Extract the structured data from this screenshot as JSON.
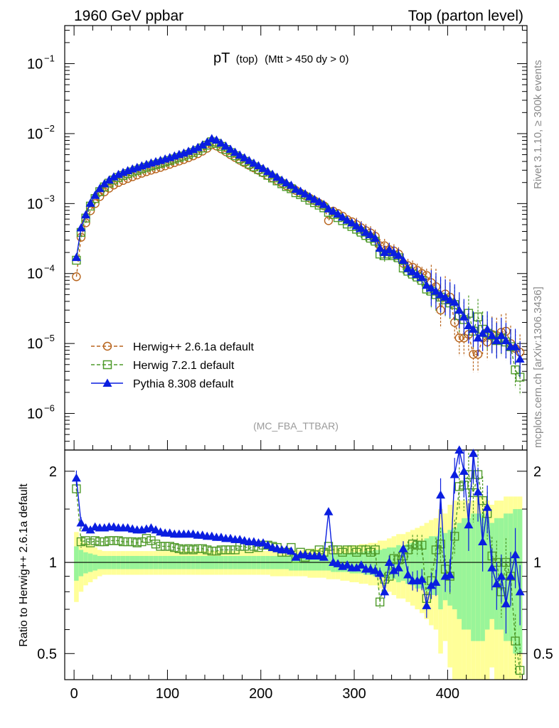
{
  "header": {
    "left": "1960 GeV ppbar",
    "right": "Top (parton level)"
  },
  "side": {
    "rivet": "Rivet 3.1.10, ≥ 300k events",
    "mcplots": "mcplots.cern.ch [arXiv:1306.3436]"
  },
  "plot_title": {
    "main": "pT",
    "sub1": "(top)",
    "sub2": "(Mtt > 450 dy > 0)"
  },
  "analysis_tag": "(MC_FBA_TTBAR)",
  "legend": [
    {
      "label": "Herwig++ 2.6.1a default",
      "color": "#b8651e",
      "marker": "circle",
      "dash": true
    },
    {
      "label": "Herwig 7.2.1 default",
      "color": "#4f9a2a",
      "marker": "square",
      "dash": true
    },
    {
      "label": "Pythia 8.308 default",
      "color": "#0a1ee0",
      "marker": "triangle",
      "dash": false
    }
  ],
  "chart_data": [
    {
      "type": "line",
      "title": "pT (top) (Mtt > 450 dy > 0)",
      "xlabel": "",
      "ylabel": "",
      "yscale": "log",
      "xlim": [
        -10,
        485
      ],
      "ylim": [
        3e-07,
        0.35
      ],
      "yticks": [
        {
          "value": 1e-06,
          "mant": "10",
          "exp": "−6"
        },
        {
          "value": 1e-05,
          "mant": "10",
          "exp": "−5"
        },
        {
          "value": 0.0001,
          "mant": "10",
          "exp": "−4"
        },
        {
          "value": 0.001,
          "mant": "10",
          "exp": "−3"
        },
        {
          "value": 0.01,
          "mant": "10",
          "exp": "−2"
        },
        {
          "value": 0.1,
          "mant": "10",
          "exp": "−1"
        }
      ],
      "x": [
        2.5,
        7.5,
        12.5,
        17.5,
        22.5,
        27.5,
        32.5,
        37.5,
        42.5,
        47.5,
        52.5,
        57.5,
        62.5,
        67.5,
        72.5,
        77.5,
        82.5,
        87.5,
        92.5,
        97.5,
        102.5,
        107.5,
        112.5,
        117.5,
        122.5,
        127.5,
        132.5,
        137.5,
        142.5,
        147.5,
        152.5,
        157.5,
        162.5,
        167.5,
        172.5,
        177.5,
        182.5,
        187.5,
        192.5,
        197.5,
        202.5,
        207.5,
        212.5,
        217.5,
        222.5,
        227.5,
        232.5,
        237.5,
        242.5,
        247.5,
        252.5,
        257.5,
        262.5,
        267.5,
        272.5,
        277.5,
        282.5,
        287.5,
        292.5,
        297.5,
        302.5,
        307.5,
        312.5,
        317.5,
        322.5,
        327.5,
        332.5,
        337.5,
        342.5,
        347.5,
        352.5,
        357.5,
        362.5,
        367.5,
        372.5,
        377.5,
        382.5,
        387.5,
        392.5,
        397.5,
        402.5,
        407.5,
        412.5,
        417.5,
        422.5,
        427.5,
        432.5,
        437.5,
        442.5,
        447.5,
        452.5,
        457.5,
        462.5,
        467.5,
        472.5,
        477.5
      ],
      "series": [
        {
          "name": "Herwig++ 2.6.1a default",
          "values": [
            9e-05,
            0.00033,
            0.00053,
            0.00079,
            0.001,
            0.00126,
            0.00147,
            0.00166,
            0.00184,
            0.002,
            0.00214,
            0.00228,
            0.00242,
            0.00256,
            0.00271,
            0.00286,
            0.003,
            0.00314,
            0.00329,
            0.00346,
            0.00364,
            0.00385,
            0.00405,
            0.00426,
            0.00452,
            0.00481,
            0.00516,
            0.00562,
            0.00618,
            0.00694,
            0.00665,
            0.00606,
            0.00551,
            0.005,
            0.00456,
            0.00416,
            0.00383,
            0.00352,
            0.00324,
            0.00299,
            0.00275,
            0.00252,
            0.00234,
            0.00214,
            0.00197,
            0.0018,
            0.00168,
            0.00154,
            0.00141,
            0.0013,
            0.00119,
            0.0011,
            0.00101,
            0.00093,
            0.00057,
            0.00078,
            0.00072,
            0.00066,
            0.00059,
            0.00055,
            0.0005,
            0.00045,
            0.00041,
            0.00038,
            0.00034,
            0.00025,
            0.00025,
            0.00022,
            0.00021,
            0.00019,
            0.00014,
            0.00013,
            0.000123,
            0.000111,
            0.0001,
            9.4e-05,
            7.4e-05,
            6.5e-05,
            3e-05,
            5.1e-05,
            4.6e-05,
            2e-05,
            1.2e-05,
            1.2e-05,
            1.35e-05,
            7e-06,
            7e-06,
            1.2e-05,
            1.05e-05,
            1.35e-05,
            1.3e-05,
            1.45e-05,
            1.5e-05,
            1e-05,
            8.5e-06,
            7.5e-06
          ]
        },
        {
          "name": "Herwig 7.2.1 default",
          "values": [
            0.000155,
            0.000387,
            0.00062,
            0.00092,
            0.00118,
            0.00148,
            0.00173,
            0.00196,
            0.00217,
            0.00236,
            0.00252,
            0.00268,
            0.00283,
            0.00298,
            0.00314,
            0.0033,
            0.00345,
            0.0036,
            0.00375,
            0.00393,
            0.00412,
            0.00434,
            0.00456,
            0.00478,
            0.00506,
            0.00537,
            0.00574,
            0.00623,
            0.00683,
            0.00764,
            0.00725,
            0.00657,
            0.00593,
            0.00534,
            0.00483,
            0.00438,
            0.00401,
            0.00366,
            0.00335,
            0.00307,
            0.00281,
            0.00254,
            0.00232,
            0.00211,
            0.00192,
            0.00175,
            0.00163,
            0.00143,
            0.00134,
            0.00123,
            0.00112,
            0.00103,
            0.00095,
            0.00087,
            0.00075,
            0.0007,
            0.00063,
            0.00057,
            0.00051,
            0.00047,
            0.00043,
            0.00039,
            0.00035,
            0.00032,
            0.00029,
            0.00019,
            0.00018,
            0.00019,
            0.00018,
            0.000168,
            0.00012,
            0.000108,
            9.8e-05,
            8.9e-05,
            8e-05,
            6e-05,
            5.6e-05,
            5e-05,
            4.6e-05,
            4.2e-05,
            3.8e-05,
            3.6e-05,
            2.5e-05,
            2.2e-05,
            2.7e-05,
            1.5e-05,
            2.4e-05,
            1.6e-05,
            1.4e-05,
            1.3e-05,
            1.1e-05,
            1.2e-05,
            1.05e-05,
            9e-06,
            4.2e-06,
            3.3e-06
          ]
        },
        {
          "name": "Pythia 8.308 default",
          "values": [
            0.00017,
            0.00045,
            0.00069,
            0.00101,
            0.00131,
            0.00164,
            0.00192,
            0.00217,
            0.00241,
            0.00261,
            0.00279,
            0.00296,
            0.00313,
            0.00329,
            0.00346,
            0.00363,
            0.0038,
            0.00397,
            0.00414,
            0.00434,
            0.00455,
            0.00479,
            0.00503,
            0.00528,
            0.00559,
            0.00594,
            0.00634,
            0.00689,
            0.00756,
            0.00848,
            0.00808,
            0.00733,
            0.00663,
            0.00598,
            0.00542,
            0.00493,
            0.00452,
            0.00413,
            0.00378,
            0.00347,
            0.00318,
            0.00287,
            0.00262,
            0.00238,
            0.00216,
            0.00198,
            0.00183,
            0.0016,
            0.0015,
            0.00138,
            0.00125,
            0.00115,
            0.00106,
            0.00097,
            0.00084,
            0.00078,
            0.00071,
            0.00064,
            0.00058,
            0.00053,
            0.00048,
            0.00044,
            0.00039,
            0.00036,
            0.00032,
            0.00023,
            0.0002,
            0.00022,
            0.000198,
            0.000182,
            0.000155,
            0.000118,
            0.000107,
            9.7e-05,
            8.8e-05,
            6.8e-05,
            6.2e-05,
            5.6e-05,
            5e-05,
            4.6e-05,
            4.2e-05,
            3.9e-05,
            3e-05,
            2.4e-05,
            1.8e-05,
            1.6e-05,
            1.2e-05,
            1.4e-05,
            1.6e-05,
            1.3e-05,
            1.1e-05,
            1.3e-05,
            1.1e-05,
            9e-06,
            9e-06,
            6e-06
          ]
        }
      ]
    },
    {
      "type": "line",
      "title": "",
      "xlabel": "",
      "ylabel": "Ratio to Herwig++ 2.6.1a default",
      "yscale": "log",
      "xlim": [
        -10,
        485
      ],
      "ylim": [
        0.41,
        2.35
      ],
      "yticks": [
        {
          "value": 0.5,
          "label": "0.5"
        },
        {
          "value": 1,
          "label": "1"
        },
        {
          "value": 2,
          "label": "2"
        }
      ],
      "xticks": [
        0,
        100,
        200,
        300,
        400
      ],
      "x": [
        2.5,
        7.5,
        12.5,
        17.5,
        22.5,
        27.5,
        32.5,
        37.5,
        42.5,
        47.5,
        52.5,
        57.5,
        62.5,
        67.5,
        72.5,
        77.5,
        82.5,
        87.5,
        92.5,
        97.5,
        102.5,
        107.5,
        112.5,
        117.5,
        122.5,
        127.5,
        132.5,
        137.5,
        142.5,
        147.5,
        152.5,
        157.5,
        162.5,
        167.5,
        172.5,
        177.5,
        182.5,
        187.5,
        192.5,
        197.5,
        202.5,
        207.5,
        212.5,
        217.5,
        222.5,
        227.5,
        232.5,
        237.5,
        242.5,
        247.5,
        252.5,
        257.5,
        262.5,
        267.5,
        272.5,
        277.5,
        282.5,
        287.5,
        292.5,
        297.5,
        302.5,
        307.5,
        312.5,
        317.5,
        322.5,
        327.5,
        332.5,
        337.5,
        342.5,
        347.5,
        352.5,
        357.5,
        362.5,
        367.5,
        372.5,
        377.5,
        382.5,
        387.5,
        392.5,
        397.5,
        402.5,
        407.5,
        412.5,
        417.5,
        422.5,
        427.5,
        432.5,
        437.5,
        442.5,
        447.5,
        452.5,
        457.5,
        462.5,
        467.5,
        472.5,
        477.5
      ],
      "band_inner": [
        0.13,
        0.1,
        0.08,
        0.07,
        0.06,
        0.05,
        0.05,
        0.05,
        0.05,
        0.05,
        0.05,
        0.05,
        0.05,
        0.05,
        0.05,
        0.05,
        0.05,
        0.05,
        0.05,
        0.05,
        0.05,
        0.05,
        0.05,
        0.05,
        0.05,
        0.05,
        0.05,
        0.05,
        0.05,
        0.05,
        0.05,
        0.05,
        0.05,
        0.05,
        0.05,
        0.05,
        0.05,
        0.05,
        0.05,
        0.05,
        0.05,
        0.05,
        0.05,
        0.05,
        0.05,
        0.05,
        0.06,
        0.06,
        0.06,
        0.06,
        0.06,
        0.06,
        0.06,
        0.06,
        0.06,
        0.07,
        0.07,
        0.07,
        0.07,
        0.08,
        0.08,
        0.08,
        0.09,
        0.09,
        0.1,
        0.1,
        0.11,
        0.12,
        0.12,
        0.14,
        0.13,
        0.15,
        0.16,
        0.18,
        0.18,
        0.2,
        0.22,
        0.22,
        0.3,
        0.25,
        0.28,
        0.3,
        0.35,
        0.4,
        0.4,
        0.45,
        0.45,
        0.45,
        0.4,
        0.35,
        0.4,
        0.4,
        0.45,
        0.45,
        0.5,
        0.5
      ],
      "band_outer": [
        0.26,
        0.2,
        0.16,
        0.14,
        0.12,
        0.1,
        0.09,
        0.09,
        0.09,
        0.09,
        0.09,
        0.09,
        0.09,
        0.09,
        0.09,
        0.09,
        0.09,
        0.09,
        0.09,
        0.09,
        0.09,
        0.09,
        0.09,
        0.09,
        0.09,
        0.09,
        0.09,
        0.09,
        0.09,
        0.09,
        0.09,
        0.09,
        0.09,
        0.09,
        0.09,
        0.09,
        0.09,
        0.09,
        0.09,
        0.09,
        0.09,
        0.09,
        0.1,
        0.1,
        0.1,
        0.1,
        0.1,
        0.1,
        0.1,
        0.1,
        0.11,
        0.11,
        0.11,
        0.11,
        0.12,
        0.12,
        0.12,
        0.13,
        0.13,
        0.14,
        0.14,
        0.15,
        0.15,
        0.16,
        0.16,
        0.18,
        0.18,
        0.2,
        0.22,
        0.24,
        0.24,
        0.26,
        0.28,
        0.3,
        0.32,
        0.35,
        0.38,
        0.4,
        0.5,
        0.45,
        0.55,
        0.6,
        0.6,
        0.6,
        0.6,
        0.6,
        0.65,
        0.65,
        0.6,
        0.55,
        0.6,
        0.6,
        0.65,
        0.65,
        0.65,
        0.65
      ],
      "series": [
        {
          "name": "Herwig 7.2.1 default",
          "values": [
            1.75,
            1.17,
            1.18,
            1.16,
            1.18,
            1.17,
            1.17,
            1.18,
            1.18,
            1.18,
            1.17,
            1.17,
            1.17,
            1.16,
            1.17,
            1.2,
            1.18,
            1.15,
            1.13,
            1.13,
            1.13,
            1.12,
            1.11,
            1.1,
            1.11,
            1.1,
            1.11,
            1.11,
            1.1,
            1.09,
            1.09,
            1.1,
            1.1,
            1.1,
            1.1,
            1.13,
            1.13,
            1.11,
            1.13,
            1.12,
            1.14,
            1.14,
            1.13,
            1.12,
            1.08,
            1.08,
            1.12,
            1.03,
            1.08,
            1.04,
            1.07,
            1.06,
            1.1,
            1.08,
            1.13,
            1.1,
            1.1,
            1.08,
            1.1,
            1.1,
            1.08,
            1.1,
            1.1,
            1.08,
            1.1,
            0.74,
            0.88,
            0.9,
            1.03,
            1.02,
            1.05,
            1.1,
            1.15,
            1.14,
            1.14,
            0.76,
            0.87,
            1.1,
            1.15,
            0.95,
            0.9,
            1.22,
            1.78,
            1.8,
            1.95,
            1.7,
            1.95,
            1.6,
            1.45,
            1.05,
            1.0,
            0.8,
            1.0,
            0.9,
            0.55,
            0.44
          ]
        },
        {
          "name": "Pythia 8.308 default",
          "values": [
            1.9,
            1.35,
            1.3,
            1.28,
            1.31,
            1.3,
            1.3,
            1.31,
            1.31,
            1.3,
            1.3,
            1.3,
            1.29,
            1.28,
            1.28,
            1.29,
            1.3,
            1.28,
            1.26,
            1.25,
            1.25,
            1.24,
            1.24,
            1.24,
            1.24,
            1.24,
            1.23,
            1.23,
            1.22,
            1.22,
            1.21,
            1.21,
            1.2,
            1.2,
            1.19,
            1.19,
            1.18,
            1.17,
            1.17,
            1.16,
            1.16,
            1.14,
            1.12,
            1.11,
            1.1,
            1.1,
            1.09,
            1.04,
            1.06,
            1.06,
            1.05,
            1.05,
            1.05,
            1.04,
            1.47,
            1.0,
            0.99,
            0.97,
            0.98,
            0.96,
            0.96,
            0.98,
            0.95,
            0.95,
            0.94,
            0.92,
            0.8,
            1.0,
            0.94,
            0.96,
            1.11,
            0.91,
            0.87,
            0.87,
            0.88,
            0.72,
            0.84,
            0.86,
            1.67,
            0.9,
            0.91,
            1.95,
            2.5,
            2.0,
            1.33,
            2.29,
            1.71,
            1.17,
            1.52,
            0.96,
            0.85,
            0.9,
            0.73,
            0.9,
            1.06,
            0.8
          ]
        }
      ]
    }
  ]
}
